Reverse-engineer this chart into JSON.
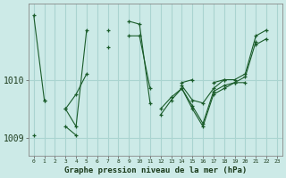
{
  "xlabel": "Graphe pression niveau de la mer (hPa)",
  "x_ticks": [
    0,
    1,
    2,
    3,
    4,
    5,
    6,
    7,
    8,
    9,
    10,
    11,
    12,
    13,
    14,
    15,
    16,
    17,
    18,
    19,
    20,
    21,
    22,
    23
  ],
  "ylim": [
    1008.7,
    1011.3
  ],
  "yticks": [
    1009,
    1010
  ],
  "bg_color": "#cceae7",
  "grid_color": "#aad4d0",
  "line_color": "#1a5c2a",
  "series": [
    [
      1011.1,
      1009.65,
      null,
      null,
      null,
      null,
      null,
      null,
      null,
      null,
      null,
      null,
      null,
      null,
      null,
      null,
      null,
      null,
      null,
      null,
      null,
      null,
      null,
      null
    ],
    [
      null,
      1009.65,
      null,
      1009.5,
      1009.75,
      1010.1,
      null,
      1010.55,
      null,
      1010.75,
      1010.75,
      1009.85,
      null,
      null,
      1009.95,
      1010.0,
      null,
      1009.95,
      1010.0,
      null,
      null,
      1010.6,
      1010.7,
      null
    ],
    [
      null,
      null,
      null,
      1009.5,
      1009.2,
      1010.85,
      null,
      1010.85,
      null,
      1011.0,
      1010.95,
      1009.6,
      null,
      null,
      1009.9,
      1009.65,
      1009.6,
      1009.85,
      1010.0,
      1010.0,
      1010.1,
      1010.75,
      1010.85,
      null
    ],
    [
      null,
      null,
      null,
      1009.2,
      1009.05,
      null,
      null,
      null,
      null,
      null,
      null,
      null,
      1009.5,
      1009.7,
      1009.85,
      1009.55,
      1009.25,
      1009.8,
      1009.9,
      1009.95,
      1010.05,
      1010.65,
      null,
      null
    ],
    [
      1009.05,
      null,
      null,
      null,
      null,
      null,
      null,
      null,
      null,
      null,
      null,
      null,
      1009.4,
      1009.65,
      1009.85,
      1009.5,
      1009.2,
      1009.75,
      1009.85,
      1009.95,
      1009.95,
      null,
      null,
      null
    ]
  ]
}
